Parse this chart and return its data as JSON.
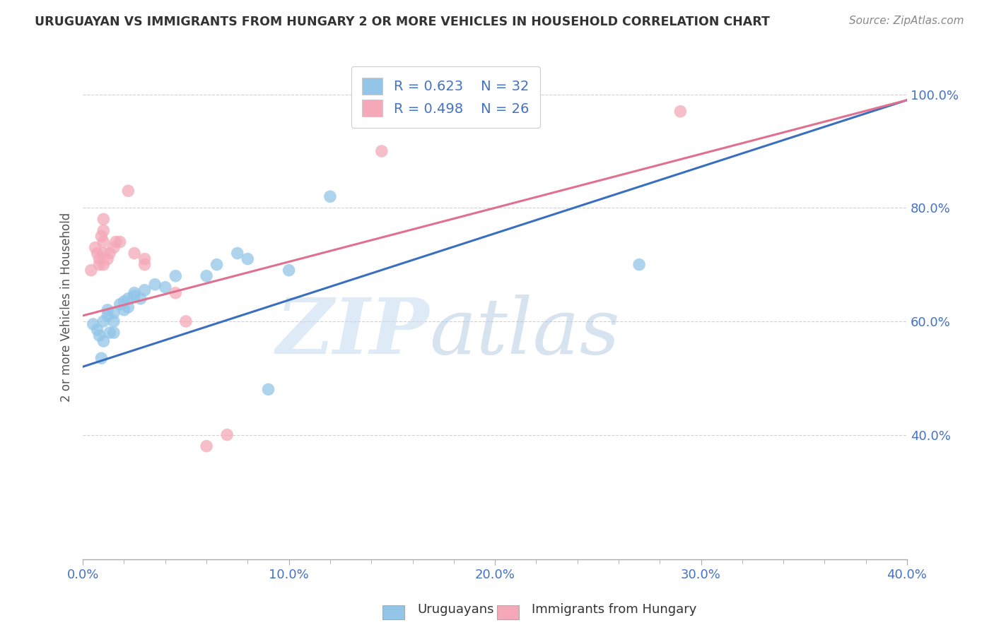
{
  "title": "URUGUAYAN VS IMMIGRANTS FROM HUNGARY 2 OR MORE VEHICLES IN HOUSEHOLD CORRELATION CHART",
  "source": "Source: ZipAtlas.com",
  "ylabel": "2 or more Vehicles in Household",
  "xmin": 0.0,
  "xmax": 0.4,
  "ymin": 0.18,
  "ymax": 1.07,
  "xtick_labels": [
    "0.0%",
    "",
    "",
    "",
    "",
    "10.0%",
    "",
    "",
    "",
    "",
    "20.0%",
    "",
    "",
    "",
    "",
    "30.0%",
    "",
    "",
    "",
    "",
    "40.0%"
  ],
  "xtick_vals": [
    0.0,
    0.02,
    0.04,
    0.06,
    0.08,
    0.1,
    0.12,
    0.14,
    0.16,
    0.18,
    0.2,
    0.22,
    0.24,
    0.26,
    0.28,
    0.3,
    0.32,
    0.34,
    0.36,
    0.38,
    0.4
  ],
  "xtick_major_labels": [
    "0.0%",
    "10.0%",
    "20.0%",
    "30.0%",
    "40.0%"
  ],
  "xtick_major_vals": [
    0.0,
    0.1,
    0.2,
    0.3,
    0.4
  ],
  "ytick_labels": [
    "40.0%",
    "60.0%",
    "80.0%",
    "100.0%"
  ],
  "ytick_vals": [
    0.4,
    0.6,
    0.8,
    1.0
  ],
  "blue_R": 0.623,
  "blue_N": 32,
  "pink_R": 0.498,
  "pink_N": 26,
  "blue_color": "#92C5E8",
  "pink_color": "#F4A8B8",
  "blue_line_color": "#3A6EBF",
  "pink_line_color": "#E07090",
  "legend_label_blue": "Uruguayans",
  "legend_label_pink": "Immigrants from Hungary",
  "blue_points": [
    [
      0.005,
      0.595
    ],
    [
      0.007,
      0.585
    ],
    [
      0.008,
      0.575
    ],
    [
      0.009,
      0.535
    ],
    [
      0.01,
      0.565
    ],
    [
      0.01,
      0.6
    ],
    [
      0.012,
      0.62
    ],
    [
      0.012,
      0.61
    ],
    [
      0.013,
      0.58
    ],
    [
      0.015,
      0.615
    ],
    [
      0.015,
      0.6
    ],
    [
      0.015,
      0.58
    ],
    [
      0.018,
      0.63
    ],
    [
      0.02,
      0.635
    ],
    [
      0.02,
      0.62
    ],
    [
      0.022,
      0.625
    ],
    [
      0.022,
      0.64
    ],
    [
      0.025,
      0.65
    ],
    [
      0.025,
      0.645
    ],
    [
      0.028,
      0.64
    ],
    [
      0.03,
      0.655
    ],
    [
      0.035,
      0.665
    ],
    [
      0.04,
      0.66
    ],
    [
      0.045,
      0.68
    ],
    [
      0.06,
      0.68
    ],
    [
      0.065,
      0.7
    ],
    [
      0.075,
      0.72
    ],
    [
      0.08,
      0.71
    ],
    [
      0.09,
      0.48
    ],
    [
      0.1,
      0.69
    ],
    [
      0.12,
      0.82
    ],
    [
      0.27,
      0.7
    ]
  ],
  "pink_points": [
    [
      0.004,
      0.69
    ],
    [
      0.006,
      0.73
    ],
    [
      0.007,
      0.72
    ],
    [
      0.008,
      0.71
    ],
    [
      0.008,
      0.7
    ],
    [
      0.009,
      0.75
    ],
    [
      0.01,
      0.76
    ],
    [
      0.01,
      0.74
    ],
    [
      0.01,
      0.72
    ],
    [
      0.01,
      0.7
    ],
    [
      0.01,
      0.78
    ],
    [
      0.012,
      0.71
    ],
    [
      0.013,
      0.72
    ],
    [
      0.015,
      0.73
    ],
    [
      0.016,
      0.74
    ],
    [
      0.018,
      0.74
    ],
    [
      0.022,
      0.83
    ],
    [
      0.025,
      0.72
    ],
    [
      0.03,
      0.7
    ],
    [
      0.03,
      0.71
    ],
    [
      0.045,
      0.65
    ],
    [
      0.05,
      0.6
    ],
    [
      0.06,
      0.38
    ],
    [
      0.07,
      0.4
    ],
    [
      0.145,
      0.9
    ],
    [
      0.29,
      0.97
    ]
  ],
  "blue_line_x": [
    0.0,
    0.4
  ],
  "blue_line_y": [
    0.52,
    0.99
  ],
  "pink_line_x": [
    0.0,
    0.4
  ],
  "pink_line_y": [
    0.61,
    0.99
  ],
  "grid_color": "#CCCCCC",
  "background_color": "#FFFFFF",
  "title_color": "#333333",
  "axis_color": "#555555",
  "tick_color": "#4472C4",
  "source_color": "#888888"
}
